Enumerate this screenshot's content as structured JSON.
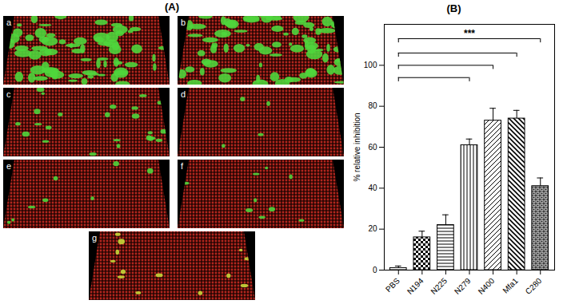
{
  "panel_a": {
    "label": "(A)",
    "images": [
      "a",
      "b",
      "c",
      "d",
      "e",
      "f",
      "g"
    ]
  },
  "chart_data": {
    "type": "bar",
    "title": "(B)",
    "categories": [
      "PBS",
      "N194",
      "N225",
      "N279",
      "N400",
      "Mfa1",
      "C280"
    ],
    "values": [
      1,
      16,
      22,
      61,
      73,
      74,
      41
    ],
    "errors": [
      1,
      3,
      5,
      3,
      6,
      4,
      4
    ],
    "y_label": "% relative inhibition",
    "ylim": [
      0,
      120
    ],
    "yticks": [
      0,
      20,
      40,
      60,
      80,
      100
    ],
    "significance": {
      "label": "***",
      "brackets": [
        {
          "from": "PBS",
          "to": "N279",
          "y": 94
        },
        {
          "from": "PBS",
          "to": "N400",
          "y": 100
        },
        {
          "from": "PBS",
          "to": "Mfa1",
          "y": 106
        },
        {
          "from": "PBS",
          "to": "C280",
          "y": 113
        }
      ]
    }
  }
}
